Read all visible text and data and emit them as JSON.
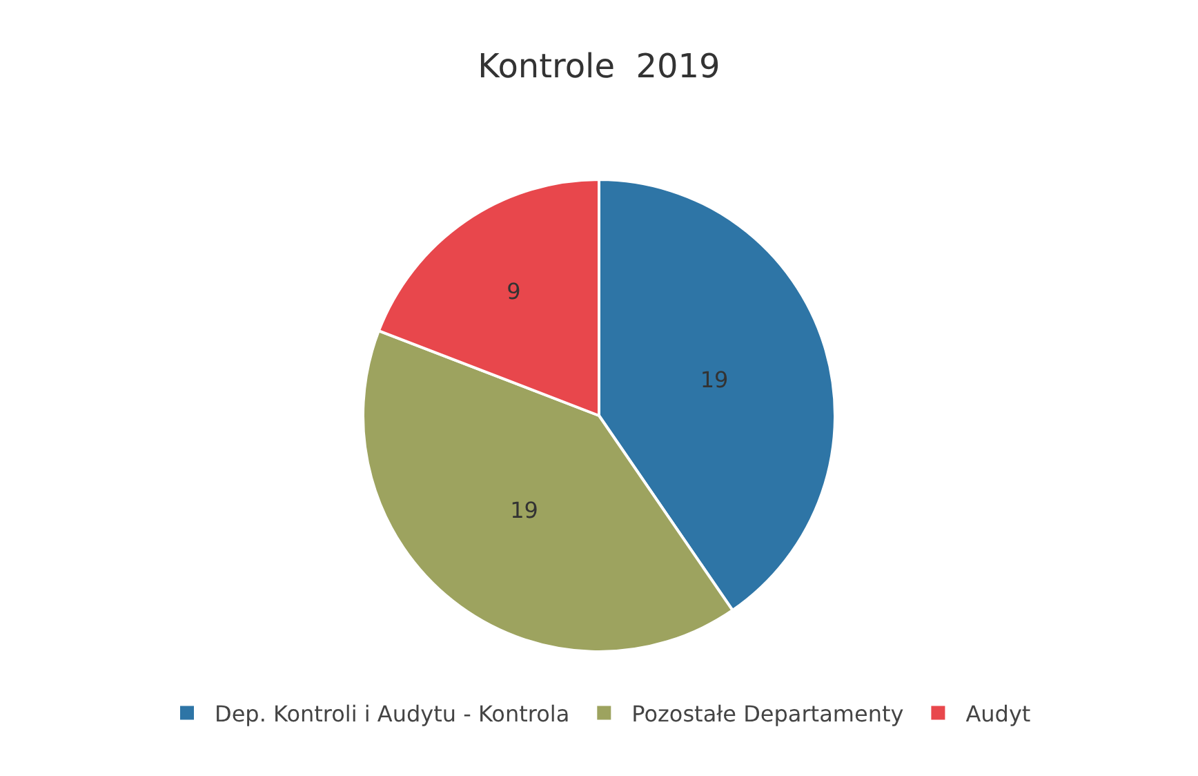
{
  "chart_data": {
    "type": "pie",
    "title": "Kontrole  2019",
    "categories": [
      "Dep. Kontroli i Audytu - Kontrola",
      "Pozostałe Departamenty",
      "Audyt"
    ],
    "values": [
      19,
      19,
      9
    ],
    "colors": [
      "#2e75a6",
      "#9da35f",
      "#e8474c"
    ],
    "data_labels": true,
    "legend": "bottom"
  }
}
